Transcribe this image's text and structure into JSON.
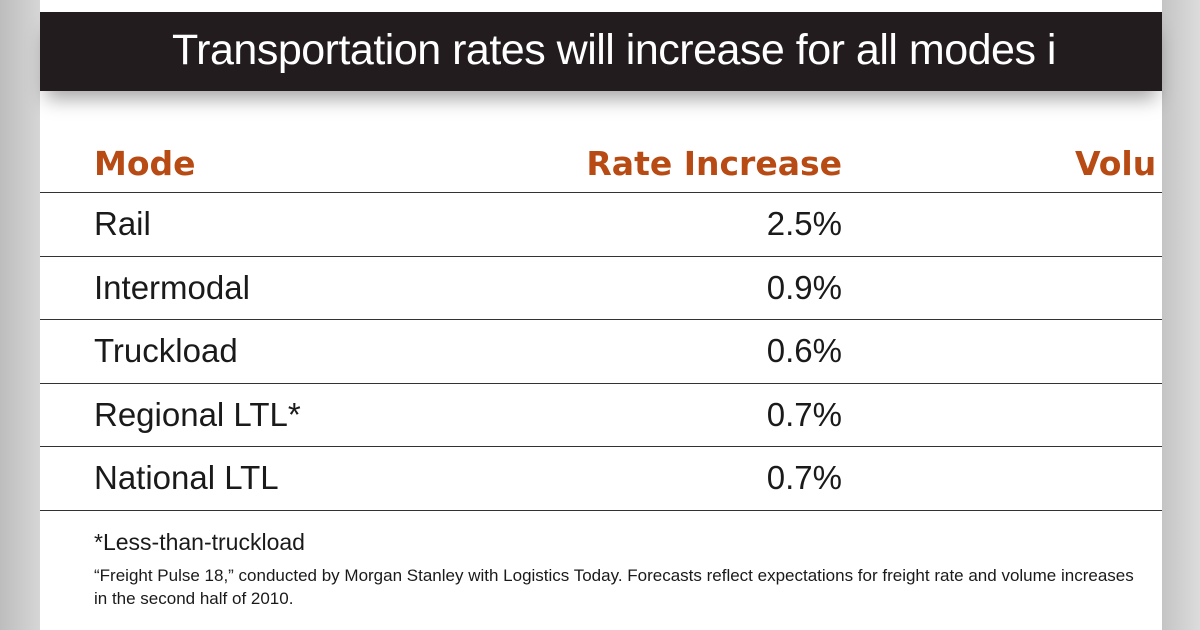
{
  "title": "Transportation rates will increase for all modes i",
  "table": {
    "headers": [
      "Mode",
      "Rate Increase",
      "Volu"
    ],
    "rows": [
      {
        "mode": "Rail",
        "rate": "2.5%"
      },
      {
        "mode": "Intermodal",
        "rate": "0.9%"
      },
      {
        "mode": "Truckload",
        "rate": "0.6%"
      },
      {
        "mode": "Regional LTL*",
        "rate": "0.7%"
      },
      {
        "mode": "National LTL",
        "rate": "0.7%"
      }
    ]
  },
  "footnote": "*Less-than-truckload",
  "source": "“Freight Pulse 18,” conducted by Morgan Stanley with Logistics Today. Forecasts reflect expectations for freight rate and volume increases in the second half of 2010.",
  "colors": {
    "banner": "#221c1e",
    "header_text": "#b84a14"
  }
}
